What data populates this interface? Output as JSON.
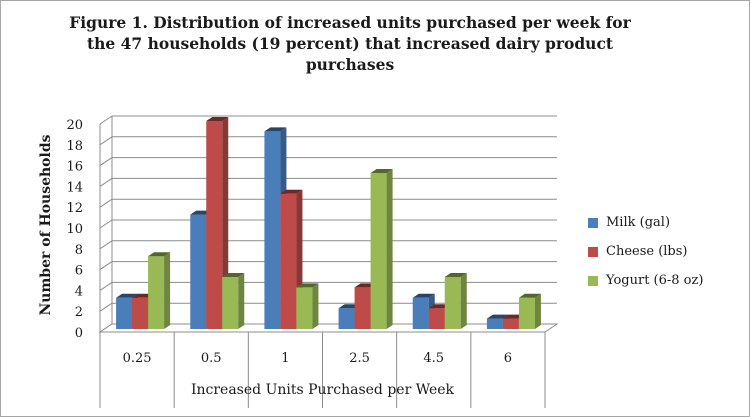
{
  "chart_data": {
    "type": "bar",
    "title": "Figure 1. Distribution of increased units purchased per week for the 47 households (19 percent) that increased dairy product purchases",
    "xlabel": "Increased Units Purchased per Week",
    "ylabel": "Number of Households",
    "categories": [
      "0.25",
      "0.5",
      "1",
      "2.5",
      "4.5",
      "6"
    ],
    "series": [
      {
        "name": "Milk (gal)",
        "values": [
          3,
          11,
          19,
          2,
          3,
          1
        ],
        "color": "#4a7ebb"
      },
      {
        "name": "Cheese (lbs)",
        "values": [
          3,
          20,
          13,
          4,
          2,
          1
        ],
        "color": "#be4b48"
      },
      {
        "name": "Yogurt (6-8 oz)",
        "values": [
          7,
          5,
          4,
          15,
          5,
          3
        ],
        "color": "#98b954"
      }
    ],
    "ylim": [
      0,
      20
    ],
    "yticks": [
      0,
      2,
      4,
      6,
      8,
      10,
      12,
      14,
      16,
      18,
      20
    ],
    "grid": true,
    "legend": "right"
  }
}
